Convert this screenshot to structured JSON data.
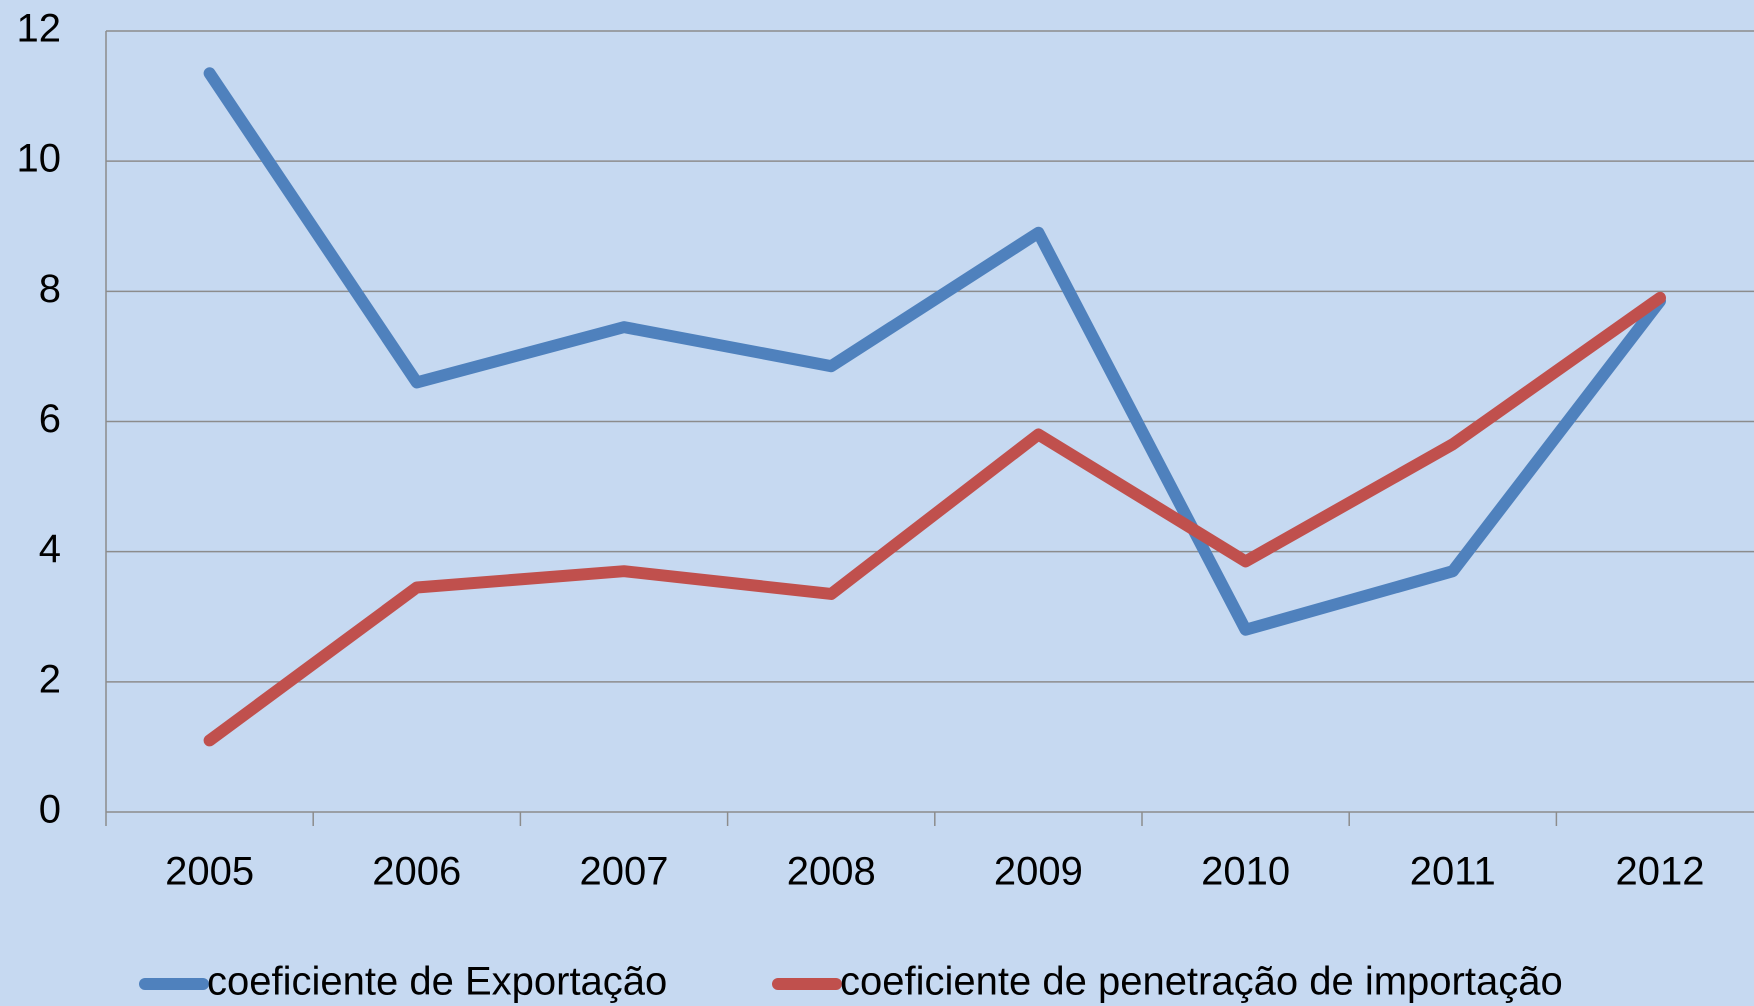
{
  "chart_data": {
    "type": "line",
    "categories": [
      "2005",
      "2006",
      "2007",
      "2008",
      "2009",
      "2010",
      "2011",
      "2012"
    ],
    "series": [
      {
        "name": "coeficiente de Exportação",
        "color": "#4f81bd",
        "values": [
          11.35,
          6.6,
          7.45,
          6.85,
          8.9,
          2.8,
          3.7,
          7.85
        ]
      },
      {
        "name": "coeficiente de penetração de importação",
        "color": "#c0504d",
        "values": [
          1.1,
          3.45,
          3.7,
          3.35,
          5.8,
          3.85,
          5.65,
          7.9
        ]
      }
    ],
    "ylim": [
      0,
      12
    ],
    "yticks": [
      0,
      2,
      4,
      6,
      8,
      10,
      12
    ],
    "grid": true,
    "legend": "bottom"
  }
}
